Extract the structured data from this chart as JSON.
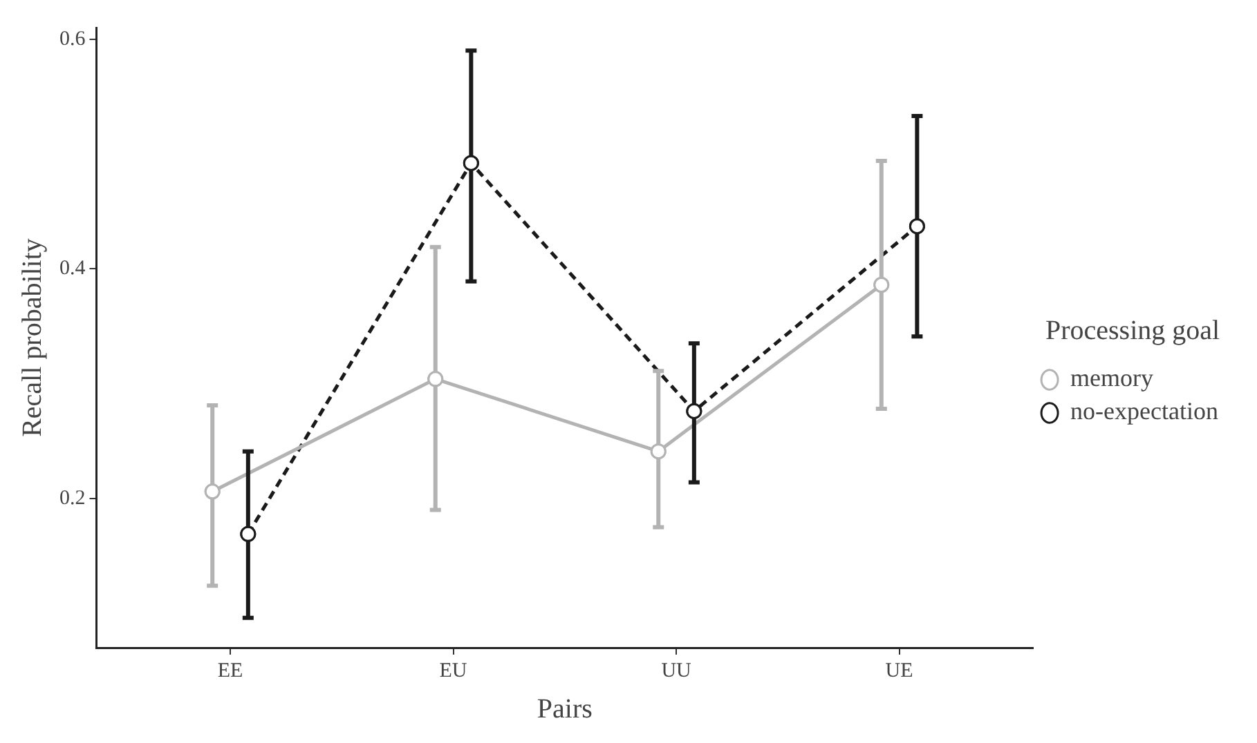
{
  "chart_data": {
    "type": "line",
    "xlabel": "Pairs",
    "ylabel": "Recall probability",
    "legend_title": "Processing goal",
    "categories": [
      "EE",
      "EU",
      "UU",
      "UE"
    ],
    "series": [
      {
        "name": "memory",
        "color": "#b3b3b3",
        "line_style": "solid",
        "values": [
          0.206,
          0.304,
          0.241,
          0.386
        ],
        "errors": [
          [
            0.124,
            0.281
          ],
          [
            0.19,
            0.419
          ],
          [
            0.175,
            0.311
          ],
          [
            0.278,
            0.494
          ]
        ]
      },
      {
        "name": "no-expectation",
        "color": "#1a1a1a",
        "line_style": "dashed",
        "values": [
          0.169,
          0.492,
          0.276,
          0.437
        ],
        "errors": [
          [
            0.096,
            0.241
          ],
          [
            0.389,
            0.59
          ],
          [
            0.214,
            0.335
          ],
          [
            0.341,
            0.533
          ]
        ]
      }
    ],
    "ylim": [
      0.07,
      0.61
    ],
    "yticks": [
      0.2,
      0.4,
      0.6
    ],
    "grid": false,
    "legend": "right",
    "marker": "circle"
  }
}
